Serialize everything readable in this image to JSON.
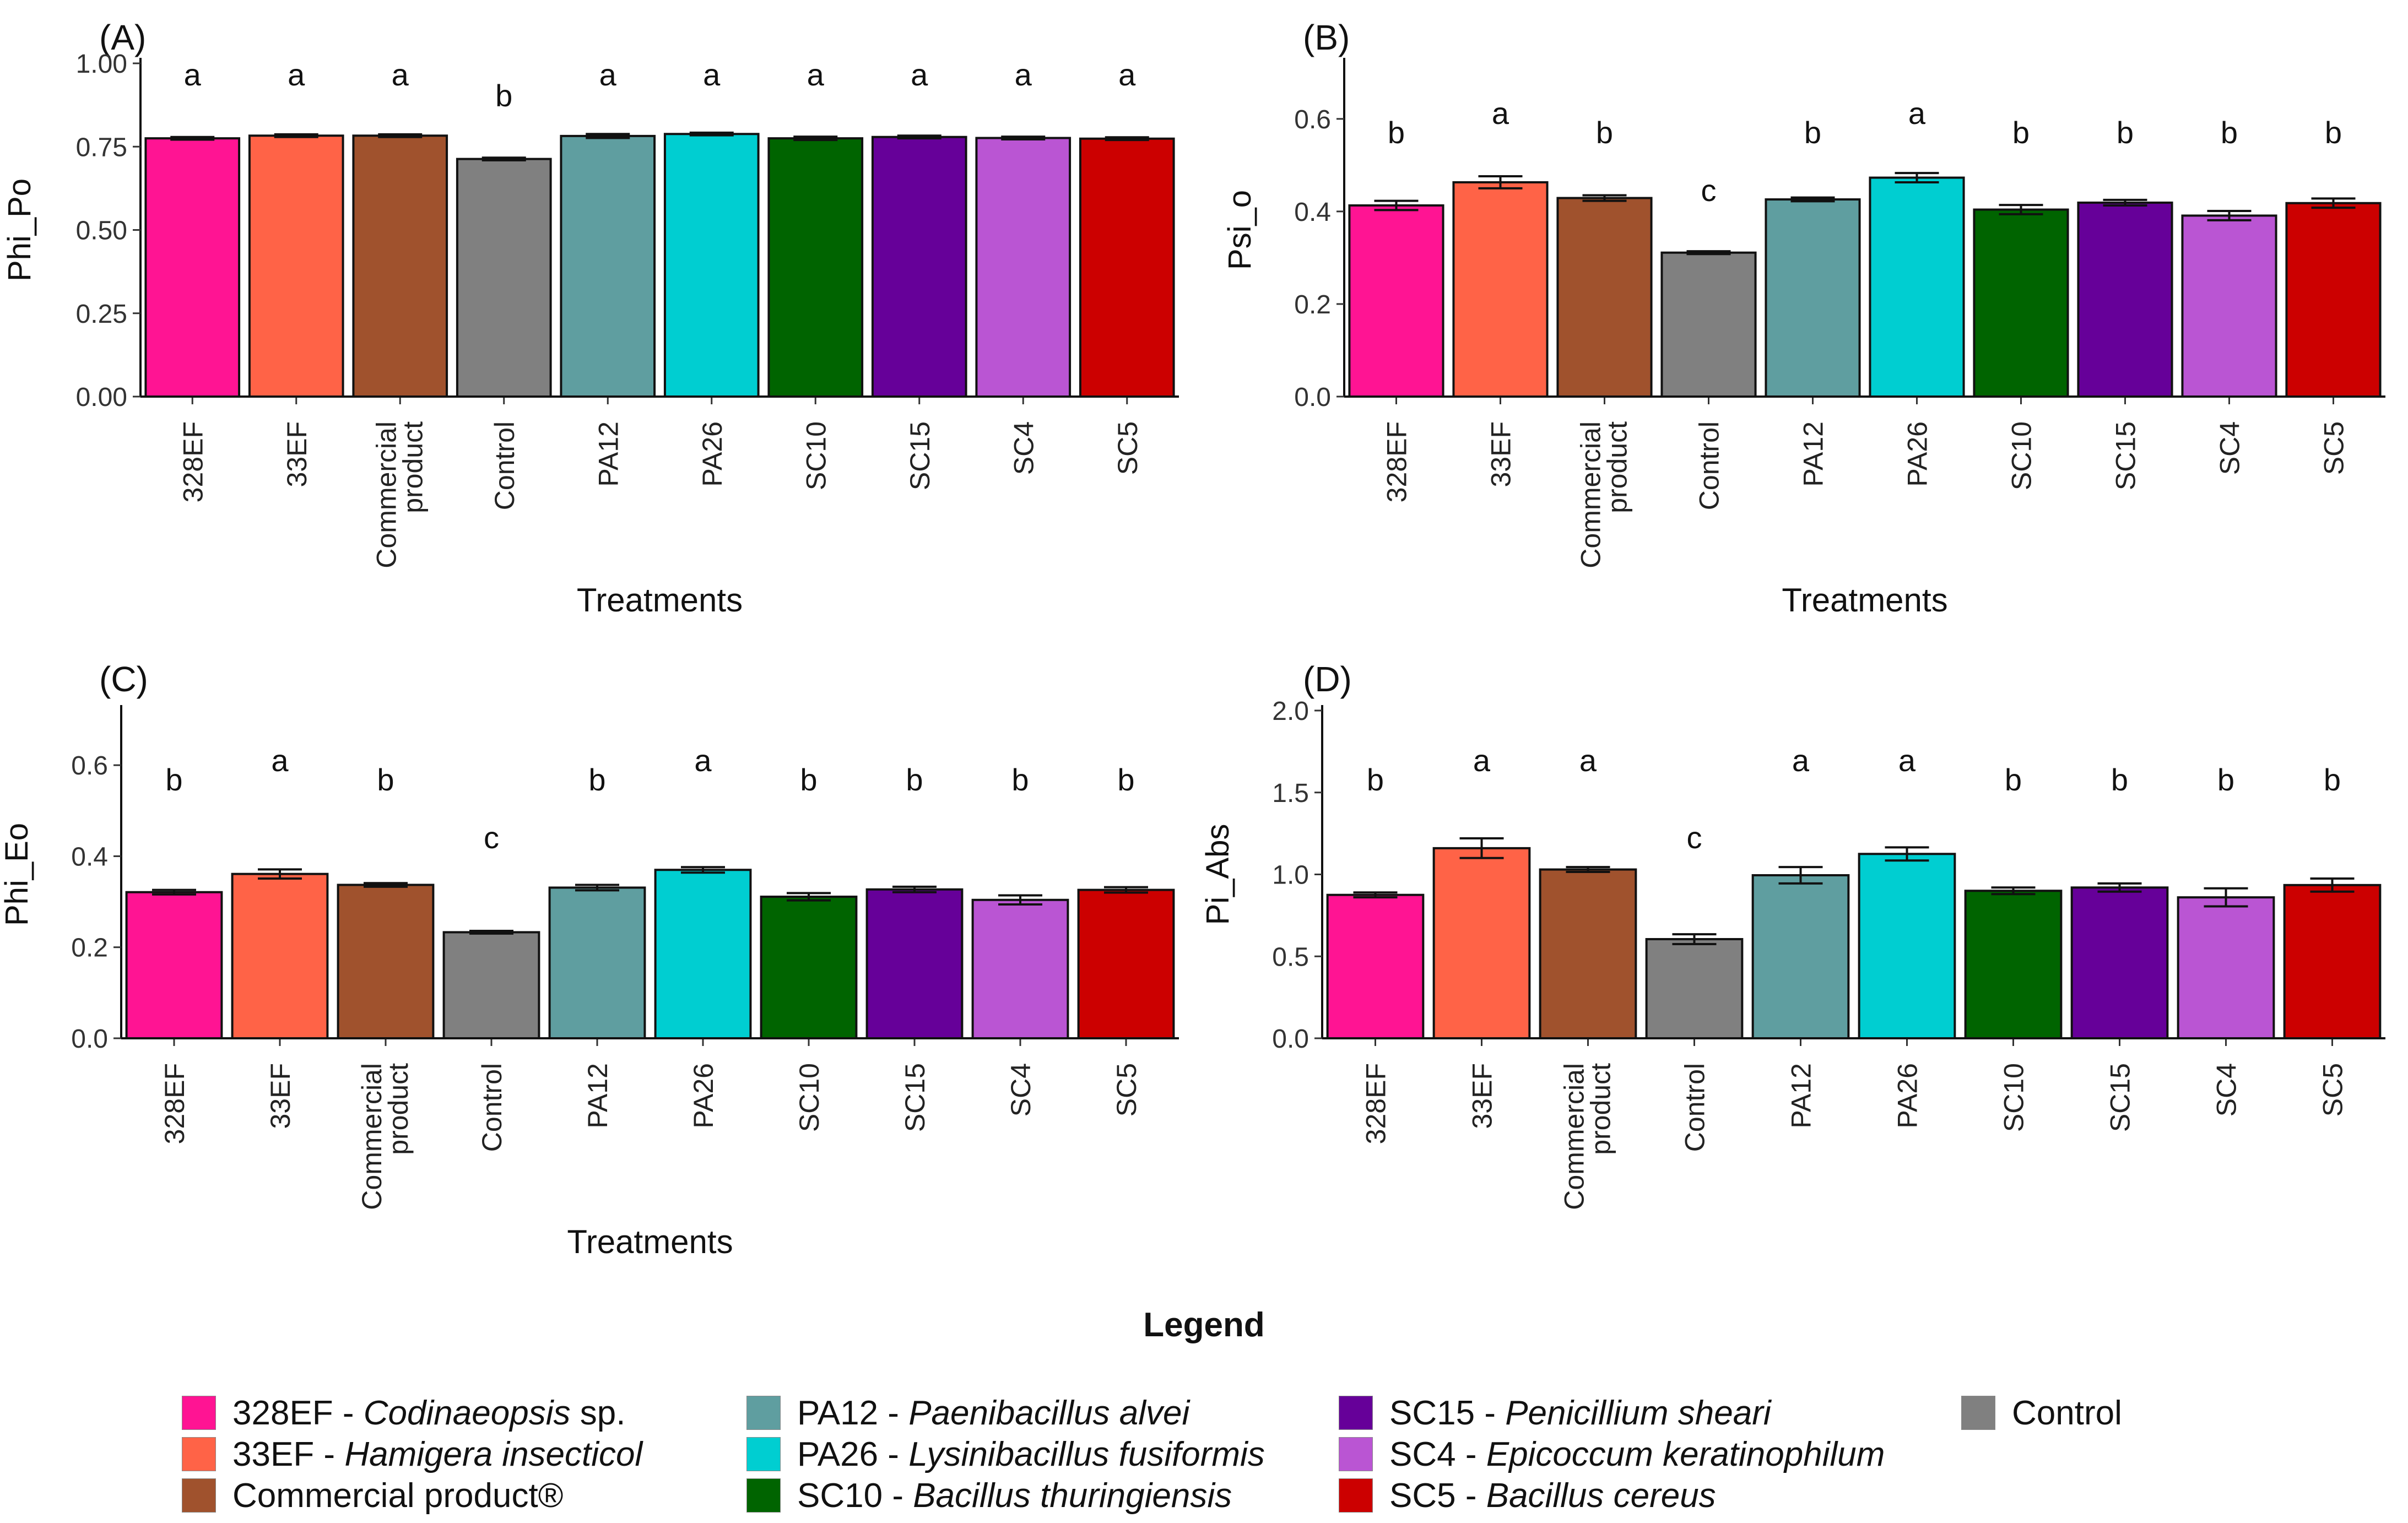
{
  "chart_data": [
    {
      "type": "bar",
      "panel_label": "(A)",
      "ylabel": "Phi_Po",
      "xlabel": "Treatments",
      "ylim": [
        0,
        1.0
      ],
      "yticks": [
        "0.00",
        "0.25",
        "0.50",
        "0.75",
        "1.00"
      ],
      "categories": [
        "328EF",
        "33EF",
        "Commercial product",
        "Control",
        "PA12",
        "PA26",
        "SC10",
        "SC15",
        "SC4",
        "SC5"
      ],
      "values": [
        0.775,
        0.783,
        0.783,
        0.713,
        0.782,
        0.788,
        0.775,
        0.779,
        0.776,
        0.774
      ],
      "errors": [
        0.004,
        0.004,
        0.004,
        0.004,
        0.006,
        0.004,
        0.005,
        0.004,
        0.004,
        0.004
      ],
      "letters": [
        "a",
        "a",
        "a",
        "b",
        "a",
        "a",
        "a",
        "a",
        "a",
        "a"
      ]
    },
    {
      "type": "bar",
      "panel_label": "(B)",
      "ylabel": "Psi_o",
      "xlabel": "Treatments",
      "ylim": [
        0,
        0.72
      ],
      "yticks": [
        "0.0",
        "0.2",
        "0.4",
        "0.6"
      ],
      "categories": [
        "328EF",
        "33EF",
        "Commercial product",
        "Control",
        "PA12",
        "PA26",
        "SC10",
        "SC15",
        "SC4",
        "SC5"
      ],
      "values": [
        0.413,
        0.463,
        0.429,
        0.311,
        0.426,
        0.473,
        0.404,
        0.419,
        0.391,
        0.418
      ],
      "errors": [
        0.01,
        0.013,
        0.006,
        0.003,
        0.004,
        0.01,
        0.01,
        0.006,
        0.01,
        0.01
      ],
      "letters": [
        "b",
        "a",
        "b",
        "c",
        "b",
        "a",
        "b",
        "b",
        "b",
        "b"
      ]
    },
    {
      "type": "bar",
      "panel_label": "(C)",
      "ylabel": "Phi_Eo",
      "xlabel": "Treatments",
      "ylim": [
        0,
        0.72
      ],
      "yticks": [
        "0.0",
        "0.2",
        "0.4",
        "0.6"
      ],
      "categories": [
        "328EF",
        "33EF",
        "Commercial product",
        "Control",
        "PA12",
        "PA26",
        "SC10",
        "SC15",
        "SC4",
        "SC5"
      ],
      "values": [
        0.321,
        0.361,
        0.337,
        0.233,
        0.331,
        0.37,
        0.311,
        0.327,
        0.304,
        0.326
      ],
      "errors": [
        0.005,
        0.01,
        0.004,
        0.003,
        0.006,
        0.006,
        0.008,
        0.006,
        0.01,
        0.006
      ],
      "letters": [
        "b",
        "a",
        "b",
        "c",
        "b",
        "a",
        "b",
        "b",
        "b",
        "b"
      ]
    },
    {
      "type": "bar",
      "panel_label": "(D)",
      "ylabel": "Pi_Abs",
      "xlabel": "",
      "ylim": [
        0,
        2.0
      ],
      "yticks": [
        "0.0",
        "0.5",
        "1.0",
        "1.5",
        "2.0"
      ],
      "categories": [
        "328EF",
        "33EF",
        "Commercial product",
        "Control",
        "PA12",
        "PA26",
        "SC10",
        "SC15",
        "SC4",
        "SC5"
      ],
      "values": [
        0.875,
        1.16,
        1.03,
        0.605,
        0.995,
        1.125,
        0.9,
        0.92,
        0.86,
        0.935
      ],
      "errors": [
        0.015,
        0.06,
        0.015,
        0.03,
        0.05,
        0.04,
        0.02,
        0.025,
        0.055,
        0.04
      ],
      "letters": [
        "b",
        "a",
        "a",
        "c",
        "a",
        "a",
        "b",
        "b",
        "b",
        "b"
      ]
    }
  ],
  "colors": {
    "328EF": "#FF1493",
    "33EF": "#FF6347",
    "Commercial product": "#A0522D",
    "Control": "#808080",
    "PA12": "#5F9EA0",
    "PA26": "#00CED1",
    "SC10": "#006400",
    "SC15": "#660099",
    "SC4": "#BA55D3",
    "SC5": "#CC0000"
  },
  "legend": {
    "title": "Legend",
    "items": [
      {
        "code": "328EF",
        "sep": " - ",
        "species": "Codinaeopsis",
        "suffix": " sp.",
        "color": "#FF1493"
      },
      {
        "code": "33EF",
        "sep": " - ",
        "species": "Hamigera insecticol",
        "suffix": "",
        "color": "#FF6347"
      },
      {
        "code": "Commercial product®",
        "sep": "",
        "species": "",
        "suffix": "",
        "color": "#A0522D"
      },
      {
        "code": "PA12",
        "sep": " - ",
        "species": "Paenibacillus alvei",
        "suffix": "",
        "color": "#5F9EA0"
      },
      {
        "code": "PA26",
        "sep": " - ",
        "species": "Lysinibacillus fusiformis",
        "suffix": "",
        "color": "#00CED1"
      },
      {
        "code": "SC10",
        "sep": " - ",
        "species": "Bacillus thuringiensis",
        "suffix": "",
        "color": "#006400"
      },
      {
        "code": "SC15",
        "sep": " - ",
        "species": "Penicillium sheari",
        "suffix": "",
        "color": "#660099"
      },
      {
        "code": "SC4",
        "sep": " - ",
        "species": "Epicoccum keratinophilum",
        "suffix": "",
        "color": "#BA55D3"
      },
      {
        "code": "SC5",
        "sep": " - ",
        "species": "Bacillus cereus",
        "suffix": "",
        "color": "#CC0000"
      },
      {
        "code": "Control",
        "sep": "",
        "species": "",
        "suffix": "",
        "color": "#808080"
      }
    ]
  }
}
